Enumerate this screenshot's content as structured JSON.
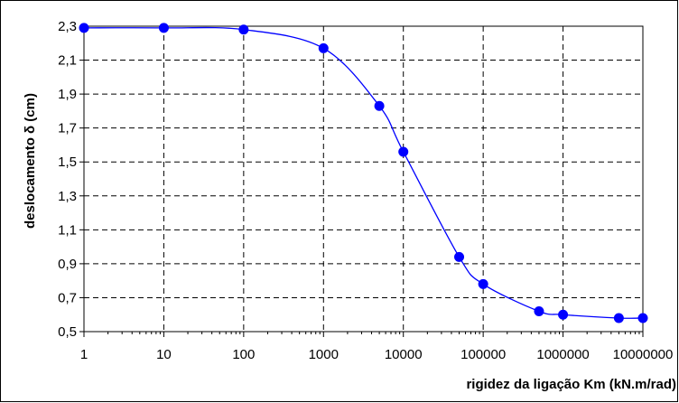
{
  "chart_data": {
    "type": "line",
    "title": "",
    "xlabel": "rigidez da ligação Km  (kN.m/rad)",
    "ylabel": "deslocamento δ (cm)",
    "xscale": "log",
    "xlim": [
      1,
      10000000
    ],
    "ylim": [
      0.5,
      2.3
    ],
    "xticks": [
      "1",
      "10",
      "100",
      "1000",
      "10000",
      "100000",
      "1000000",
      "10000000"
    ],
    "yticks": [
      "0,5",
      "0,7",
      "0,9",
      "1,1",
      "1,3",
      "1,5",
      "1,7",
      "1,9",
      "2,1",
      "2,3"
    ],
    "grid": true,
    "series": [
      {
        "color": "#0000ff",
        "x": [
          1,
          10,
          100,
          1000,
          5000,
          10000,
          50000,
          100000,
          500000,
          1000000,
          5000000,
          10000000
        ],
        "y": [
          2.29,
          2.29,
          2.28,
          2.17,
          1.83,
          1.56,
          0.94,
          0.78,
          0.62,
          0.6,
          0.58,
          0.58
        ]
      }
    ]
  }
}
